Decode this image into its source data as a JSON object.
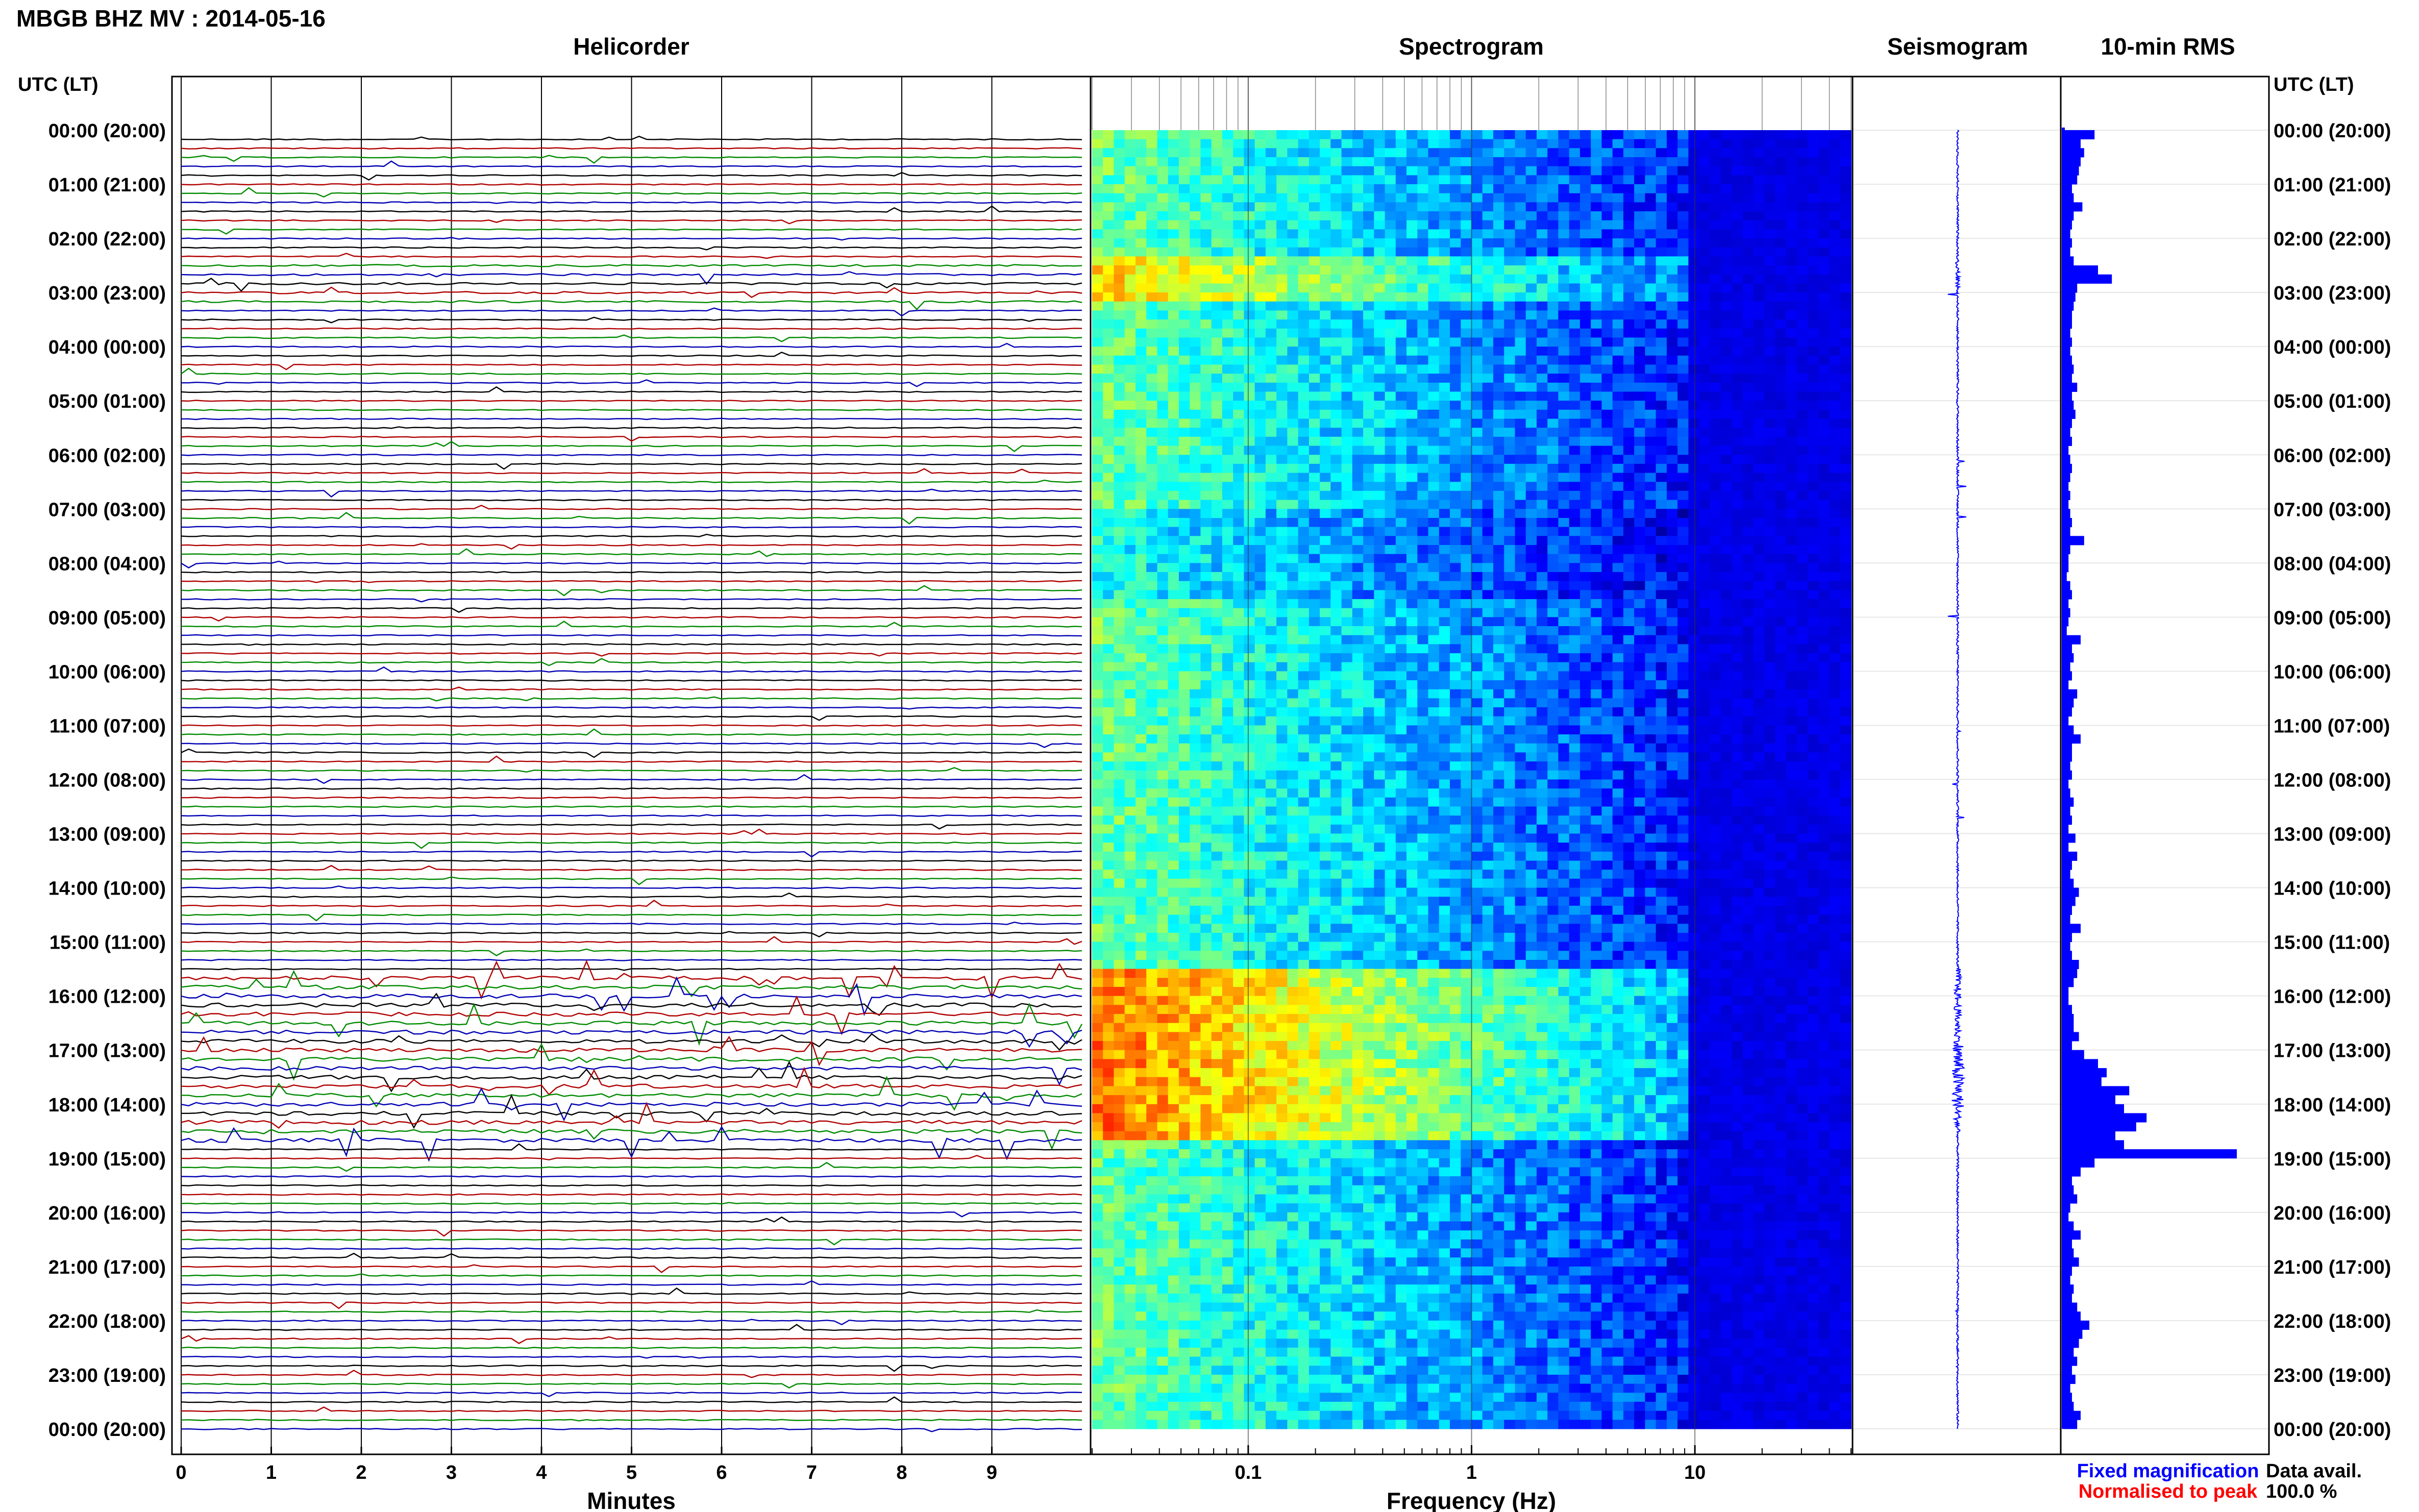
{
  "figure": {
    "title": "MBGB BHZ MV : 2014-05-16",
    "panels": {
      "helicorder": "Helicorder",
      "spectrogram": "Spectrogram",
      "seismogram": "Seismogram",
      "rms": "10-min RMS"
    },
    "left_axis_label": "UTC (LT)",
    "right_axis_label": "UTC (LT)",
    "legend": {
      "fixed": "Fixed magnification",
      "normalised": "Normalised to peak",
      "data_avail_label": "Data avail.",
      "data_avail_value": "100.0 %"
    },
    "colors": {
      "trace_black": "#000000",
      "trace_red": "#b00000",
      "trace_green": "#008a00",
      "trace_blue": "#0000b4",
      "seismo": "#0000ff",
      "rms_fill": "#0000ff",
      "fixed_text": "#0000ff",
      "normalised_text": "#ff0000"
    }
  },
  "chart_data": [
    {
      "type": "line",
      "name": "helicorder",
      "xlabel": "Minutes",
      "xlim": [
        0,
        10
      ],
      "xticks": [
        "0",
        "1",
        "2",
        "3",
        "4",
        "5",
        "6",
        "7",
        "8",
        "9"
      ],
      "y_ticks": [
        "00:00 (20:00)",
        "01:00 (21:00)",
        "02:00 (22:00)",
        "03:00 (23:00)",
        "04:00 (00:00)",
        "05:00 (01:00)",
        "06:00 (02:00)",
        "07:00 (03:00)",
        "08:00 (04:00)",
        "09:00 (05:00)",
        "10:00 (06:00)",
        "11:00 (07:00)",
        "12:00 (08:00)",
        "13:00 (09:00)",
        "14:00 (10:00)",
        "15:00 (11:00)",
        "16:00 (12:00)",
        "17:00 (13:00)",
        "18:00 (14:00)",
        "19:00 (15:00)",
        "20:00 (16:00)",
        "21:00 (17:00)",
        "22:00 (18:00)",
        "23:00 (19:00)",
        "00:00 (20:00)"
      ],
      "traces_per_hour": 6,
      "color_cycle": [
        "black",
        "red",
        "green",
        "blue"
      ]
    },
    {
      "type": "heatmap",
      "name": "spectrogram",
      "xlabel": "Frequency (Hz)",
      "xscale": "log",
      "xlim": [
        0.02,
        50
      ],
      "xticks": [
        "0.1",
        "1",
        "10"
      ],
      "rows": 144,
      "colormap": "jet",
      "high_energy_hours": [
        "02:30-03:00",
        "15:30-18:30"
      ]
    },
    {
      "type": "line",
      "name": "seismogram",
      "burst_hours": [
        "02:30",
        "15:30-18:30",
        "21:00"
      ]
    },
    {
      "type": "bar",
      "name": "10-min RMS",
      "orientation": "horizontal",
      "interval_min": 10,
      "values": [
        0.18,
        0.1,
        0.12,
        0.1,
        0.09,
        0.08,
        0.05,
        0.06,
        0.11,
        0.06,
        0.05,
        0.04,
        0.05,
        0.04,
        0.06,
        0.2,
        0.28,
        0.08,
        0.07,
        0.06,
        0.05,
        0.05,
        0.04,
        0.05,
        0.04,
        0.05,
        0.06,
        0.05,
        0.08,
        0.05,
        0.06,
        0.07,
        0.05,
        0.04,
        0.05,
        0.03,
        0.04,
        0.05,
        0.04,
        0.03,
        0.04,
        0.03,
        0.04,
        0.05,
        0.04,
        0.12,
        0.04,
        0.03,
        0.03,
        0.02,
        0.04,
        0.05,
        0.03,
        0.04,
        0.03,
        0.02,
        0.1,
        0.05,
        0.06,
        0.04,
        0.05,
        0.03,
        0.08,
        0.06,
        0.05,
        0.03,
        0.06,
        0.1,
        0.05,
        0.05,
        0.04,
        0.05,
        0.03,
        0.04,
        0.06,
        0.04,
        0.05,
        0.03,
        0.07,
        0.03,
        0.08,
        0.05,
        0.04,
        0.06,
        0.09,
        0.07,
        0.05,
        0.04,
        0.1,
        0.05,
        0.04,
        0.05,
        0.09,
        0.08,
        0.06,
        0.03,
        0.03,
        0.05,
        0.06,
        0.06,
        0.09,
        0.05,
        0.12,
        0.2,
        0.25,
        0.22,
        0.38,
        0.3,
        0.35,
        0.48,
        0.42,
        0.3,
        0.35,
        1.0,
        0.18,
        0.1,
        0.05,
        0.06,
        0.08,
        0.04,
        0.03,
        0.06,
        0.1,
        0.05,
        0.06,
        0.09,
        0.05,
        0.04,
        0.06,
        0.05,
        0.08,
        0.1,
        0.15,
        0.11,
        0.09,
        0.06,
        0.08,
        0.05,
        0.07,
        0.04,
        0.05,
        0.06,
        0.1,
        0.08
      ]
    }
  ]
}
